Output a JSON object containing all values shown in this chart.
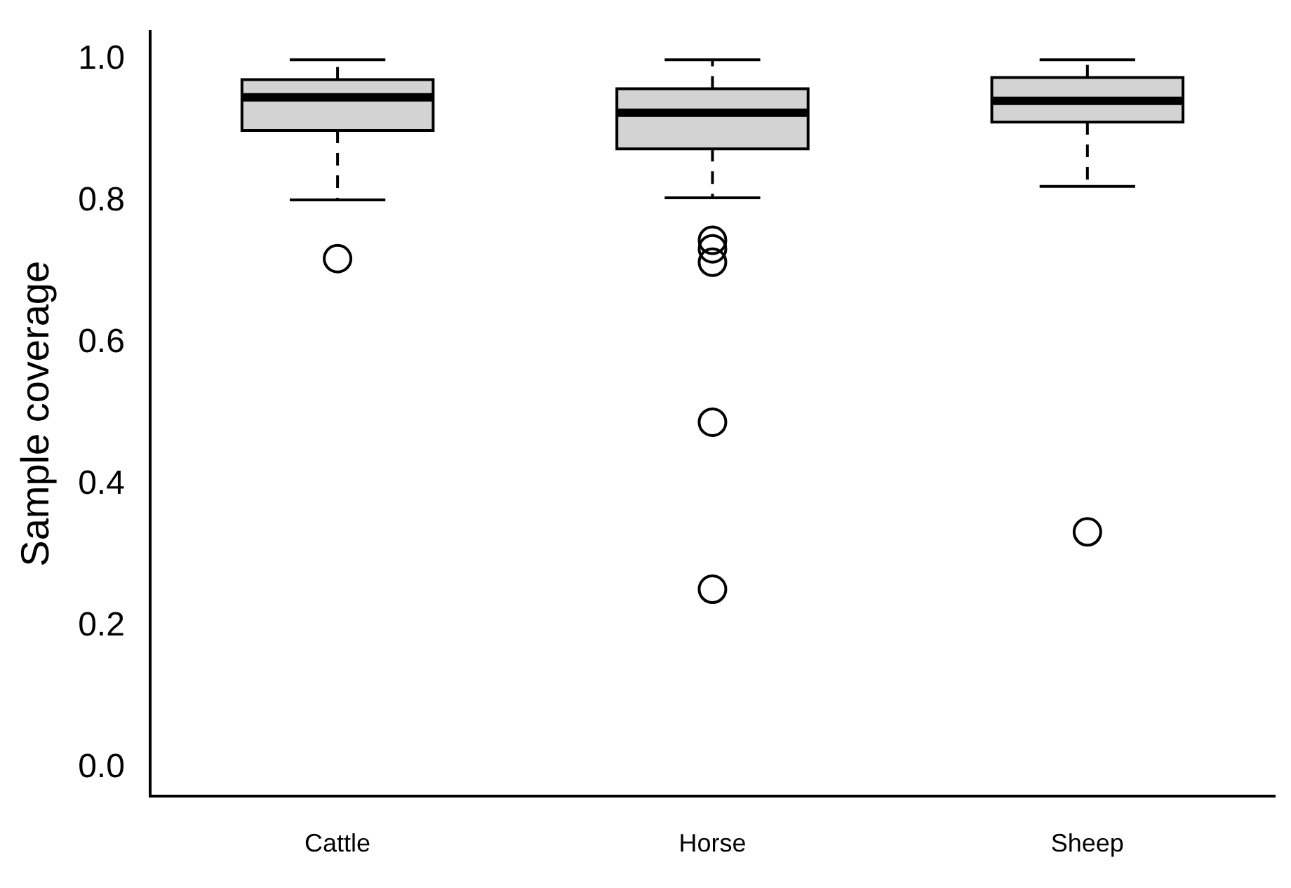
{
  "chart_data": {
    "type": "box",
    "ylabel": "Sample coverage",
    "categories": [
      "Cattle",
      "Horse",
      "Sheep"
    ],
    "series": [
      {
        "color": "#d3d3d3",
        "boxes": [
          {
            "low": 0.802,
            "q1": 0.9,
            "median": 0.947,
            "q3": 0.972,
            "high": 1.0,
            "outliers": [
              0.719
            ]
          },
          {
            "low": 0.805,
            "q1": 0.874,
            "median": 0.925,
            "q3": 0.959,
            "high": 1.0,
            "outliers": [
              0.745,
              0.733,
              0.714,
              0.488,
              0.252
            ]
          },
          {
            "low": 0.821,
            "q1": 0.912,
            "median": 0.942,
            "q3": 0.975,
            "high": 1.0,
            "outliers": [
              0.333
            ]
          }
        ]
      }
    ],
    "ylim": [
      -0.04,
      1.04
    ],
    "yticks": [
      {
        "value": 0,
        "label": "0.0"
      },
      {
        "value": 0.2,
        "label": "0.2"
      },
      {
        "value": 0.4,
        "label": "0.4"
      },
      {
        "value": 0.6,
        "label": "0.6"
      },
      {
        "value": 0.8,
        "label": "0.8"
      },
      {
        "value": 1,
        "label": "1.0"
      }
    ]
  }
}
